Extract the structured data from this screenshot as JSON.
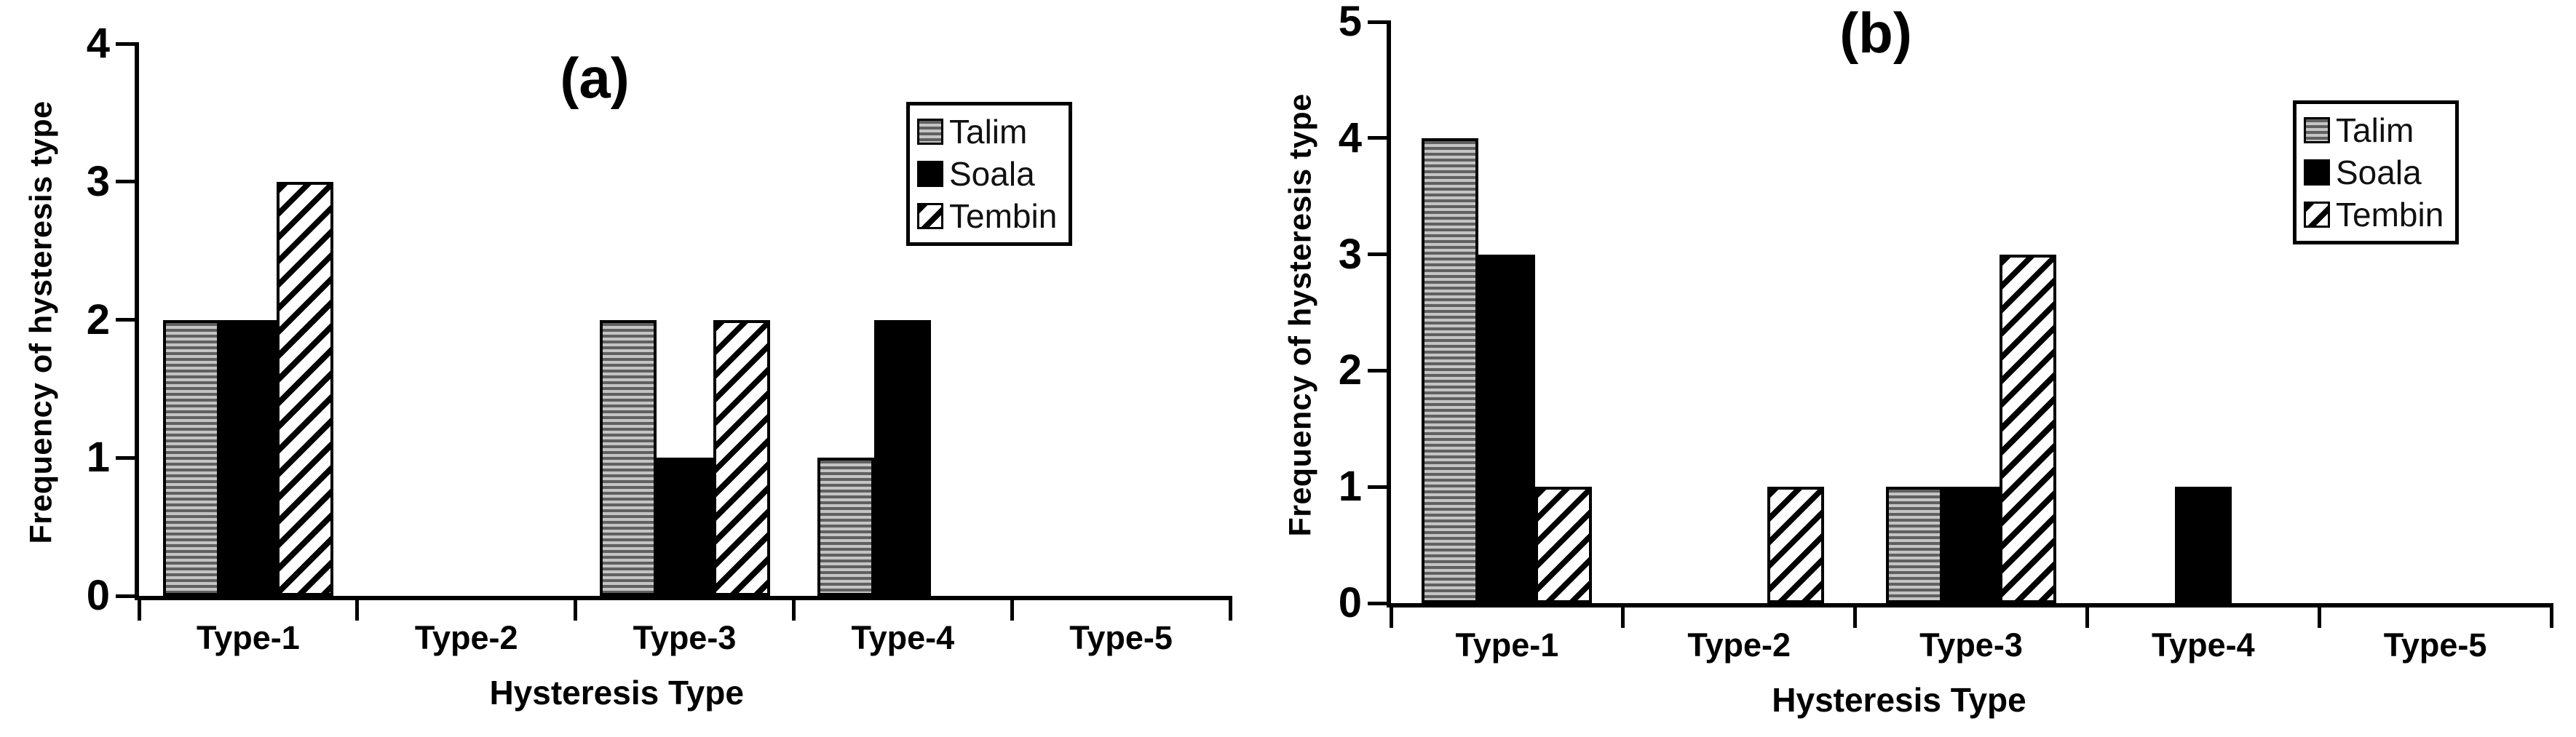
{
  "chart_data": [
    {
      "type": "bar",
      "panel": "a",
      "title": "(a)",
      "xlabel": "Hysteresis Type",
      "ylabel": "Frequency of hysteresis type",
      "ylim": [
        0,
        4
      ],
      "yticks": [
        0,
        1,
        2,
        3,
        4
      ],
      "categories": [
        "Type-1",
        "Type-2",
        "Type-3",
        "Type-4",
        "Type-5"
      ],
      "series": [
        {
          "name": "Talim",
          "pattern": "horizontal-stripes",
          "values": [
            2,
            0,
            2,
            1,
            0
          ]
        },
        {
          "name": "Soala",
          "pattern": "solid-black",
          "values": [
            2,
            0,
            1,
            2,
            0
          ]
        },
        {
          "name": "Tembin",
          "pattern": "diagonal-hatch",
          "values": [
            3,
            0,
            2,
            0,
            0
          ]
        }
      ],
      "legend": [
        "Talim",
        "Soala",
        "Tembin"
      ],
      "legend_position": "top-right",
      "grid": false
    },
    {
      "type": "bar",
      "panel": "b",
      "title": "(b)",
      "xlabel": "Hysteresis Type",
      "ylabel": "Frequency of hysteresis type",
      "ylim": [
        0,
        5
      ],
      "yticks": [
        0,
        1,
        2,
        3,
        4,
        5
      ],
      "categories": [
        "Type-1",
        "Type-2",
        "Type-3",
        "Type-4",
        "Type-5"
      ],
      "series": [
        {
          "name": "Talim",
          "pattern": "horizontal-stripes",
          "values": [
            4,
            0,
            1,
            0,
            0
          ]
        },
        {
          "name": "Soala",
          "pattern": "solid-black",
          "values": [
            3,
            0,
            1,
            1,
            0
          ]
        },
        {
          "name": "Tembin",
          "pattern": "diagonal-hatch",
          "values": [
            1,
            1,
            3,
            0,
            0
          ]
        }
      ],
      "legend": [
        "Talim",
        "Soala",
        "Tembin"
      ],
      "legend_position": "top-right",
      "grid": false
    }
  ],
  "colors": {
    "foreground": "#000000",
    "background": "#ffffff",
    "soala_fill": "#000000",
    "talim_stripe_dark": "#606060",
    "talim_stripe_light": "#c4c4c4",
    "tembin_hatch": "#000000"
  }
}
